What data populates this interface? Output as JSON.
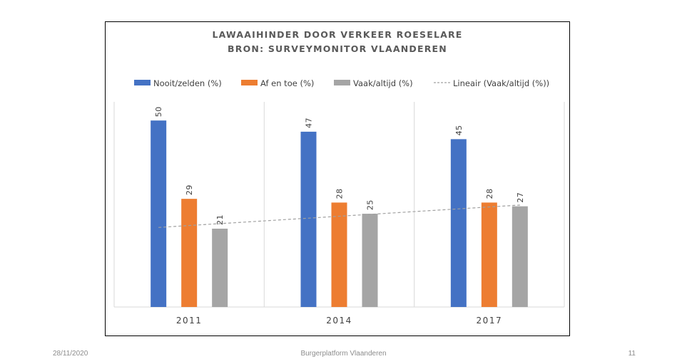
{
  "chart_data": {
    "type": "bar",
    "title": "LAWAAIHINDER DOOR VERKEER ROESELARE",
    "subtitle": "BRON: SURVEYMONITOR VLAANDEREN",
    "categories": [
      "2011",
      "2014",
      "2017"
    ],
    "series": [
      {
        "name": "Nooit/zelden (%)",
        "values": [
          50,
          47,
          45
        ],
        "color": "#4472C4"
      },
      {
        "name": "Af en toe (%)",
        "values": [
          29,
          28,
          28
        ],
        "color": "#ED7D31"
      },
      {
        "name": "Vaak/altijd (%)",
        "values": [
          21,
          25,
          27
        ],
        "color": "#A5A5A5"
      }
    ],
    "trendline": {
      "name": "Lineair (Vaak/altijd (%))",
      "type": "linear",
      "of_series": "Vaak/altijd (%)",
      "color": "#A5A5A5",
      "style": "dashed"
    },
    "ylim": [
      0,
      55
    ],
    "xlabel": "",
    "ylabel": "",
    "grid": "vertical",
    "legend_position": "top",
    "data_labels": true
  },
  "footer": {
    "date": "28/11/2020",
    "center": "Burgerplatform Vlaanderen",
    "page": "11"
  }
}
